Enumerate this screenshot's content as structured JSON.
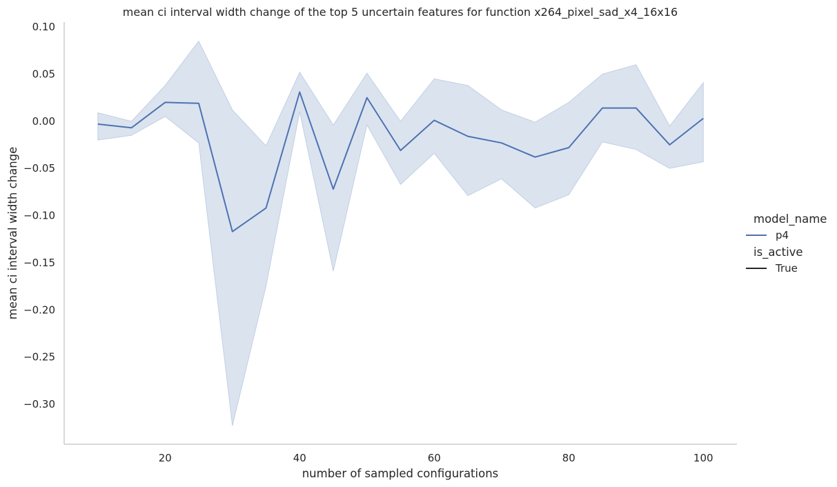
{
  "chart_data": {
    "type": "line",
    "title": "mean ci interval width change of the top 5 uncertain features for function x264_pixel_sad_x4_16x16",
    "xlabel": "number of sampled configurations",
    "ylabel": "mean ci interval width change",
    "xlim": [
      5,
      105
    ],
    "ylim": [
      -0.34,
      0.105
    ],
    "x_ticks": [
      20,
      40,
      60,
      80,
      100
    ],
    "y_ticks": [
      0.1,
      0.05,
      0.0,
      -0.05,
      -0.1,
      -0.15,
      -0.2,
      -0.25,
      -0.3
    ],
    "y_tick_labels": [
      "0.10",
      "0.05",
      "0.00",
      "−0.05",
      "−0.10",
      "−0.15",
      "−0.20",
      "−0.25",
      "−0.30"
    ],
    "grid": false,
    "legend_placement": "right",
    "legend": {
      "groups": [
        {
          "title": "model_name",
          "entries": [
            {
              "label": "p4",
              "color": "#4c72b0"
            }
          ]
        },
        {
          "title": "is_active",
          "entries": [
            {
              "label": "True",
              "color": "#262626"
            }
          ]
        }
      ]
    },
    "series": [
      {
        "name": "p4",
        "color": "#4c72b0",
        "x": [
          10,
          15,
          20,
          25,
          30,
          35,
          40,
          45,
          50,
          55,
          60,
          65,
          70,
          75,
          80,
          85,
          90,
          95,
          100
        ],
        "y": [
          -0.003,
          -0.007,
          0.02,
          0.019,
          -0.117,
          -0.092,
          0.031,
          -0.072,
          0.025,
          -0.031,
          0.001,
          -0.016,
          -0.023,
          -0.038,
          -0.028,
          0.014,
          0.014,
          -0.025,
          0.003
        ],
        "ci_upper": [
          0.009,
          0.0,
          0.038,
          0.085,
          0.012,
          -0.026,
          0.052,
          -0.004,
          0.051,
          0.0,
          0.045,
          0.038,
          0.012,
          -0.001,
          0.02,
          0.05,
          0.06,
          -0.005,
          0.041
        ],
        "ci_lower": [
          -0.02,
          -0.015,
          0.005,
          -0.023,
          -0.323,
          -0.175,
          0.01,
          -0.159,
          -0.004,
          -0.067,
          -0.034,
          -0.079,
          -0.061,
          -0.092,
          -0.078,
          -0.022,
          -0.03,
          -0.05,
          -0.043
        ]
      }
    ]
  }
}
